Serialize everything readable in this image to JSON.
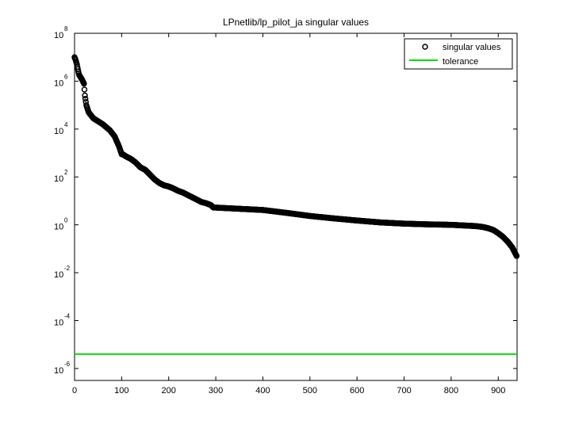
{
  "chart_data": {
    "type": "scatter",
    "title": "LPnetlib/lp_pilot_ja singular values",
    "xlabel": "",
    "ylabel": "",
    "xlim": [
      0,
      940
    ],
    "ylim_log10": [
      -6.5,
      8
    ],
    "y_scale": "log",
    "grid": false,
    "legend_position": "top-right",
    "x_ticks": [
      "0",
      "100",
      "200",
      "300",
      "400",
      "500",
      "600",
      "700",
      "800",
      "900"
    ],
    "x_tick_values": [
      0,
      100,
      200,
      300,
      400,
      500,
      600,
      700,
      800,
      900
    ],
    "y_tick_exponents": [
      "8",
      "6",
      "4",
      "2",
      "0",
      "-2",
      "-4",
      "-6"
    ],
    "y_tick_base": "10",
    "series": [
      {
        "name": "singular values",
        "marker": "circle-open",
        "color": "#000000",
        "log10_profile_x": [
          0,
          2,
          5,
          8,
          10,
          15,
          20,
          22,
          25,
          30,
          40,
          60,
          75,
          85,
          95,
          100,
          102,
          110,
          120,
          130,
          140,
          150,
          160,
          170,
          180,
          190,
          200,
          210,
          220,
          230,
          240,
          250,
          260,
          270,
          280,
          290,
          295,
          300,
          350,
          400,
          450,
          500,
          550,
          600,
          650,
          700,
          750,
          800,
          850,
          860,
          870,
          880,
          890,
          900,
          910,
          920,
          930,
          935,
          939
        ],
        "log10_profile_y": [
          7.0,
          6.9,
          6.7,
          6.4,
          6.25,
          6.1,
          5.9,
          5.4,
          5.0,
          4.7,
          4.45,
          4.2,
          3.95,
          3.7,
          3.25,
          2.95,
          2.95,
          2.85,
          2.75,
          2.6,
          2.4,
          2.3,
          2.1,
          1.9,
          1.75,
          1.65,
          1.6,
          1.52,
          1.42,
          1.35,
          1.25,
          1.15,
          1.05,
          0.95,
          0.9,
          0.82,
          0.72,
          0.72,
          0.67,
          0.62,
          0.5,
          0.37,
          0.27,
          0.18,
          0.1,
          0.05,
          0.02,
          0.0,
          -0.05,
          -0.07,
          -0.1,
          -0.15,
          -0.22,
          -0.35,
          -0.5,
          -0.7,
          -0.95,
          -1.15,
          -1.3
        ],
        "count": 940
      },
      {
        "name": "tolerance",
        "marker": "line",
        "color": "#00dd00",
        "log10_value": -5.4
      }
    ]
  }
}
